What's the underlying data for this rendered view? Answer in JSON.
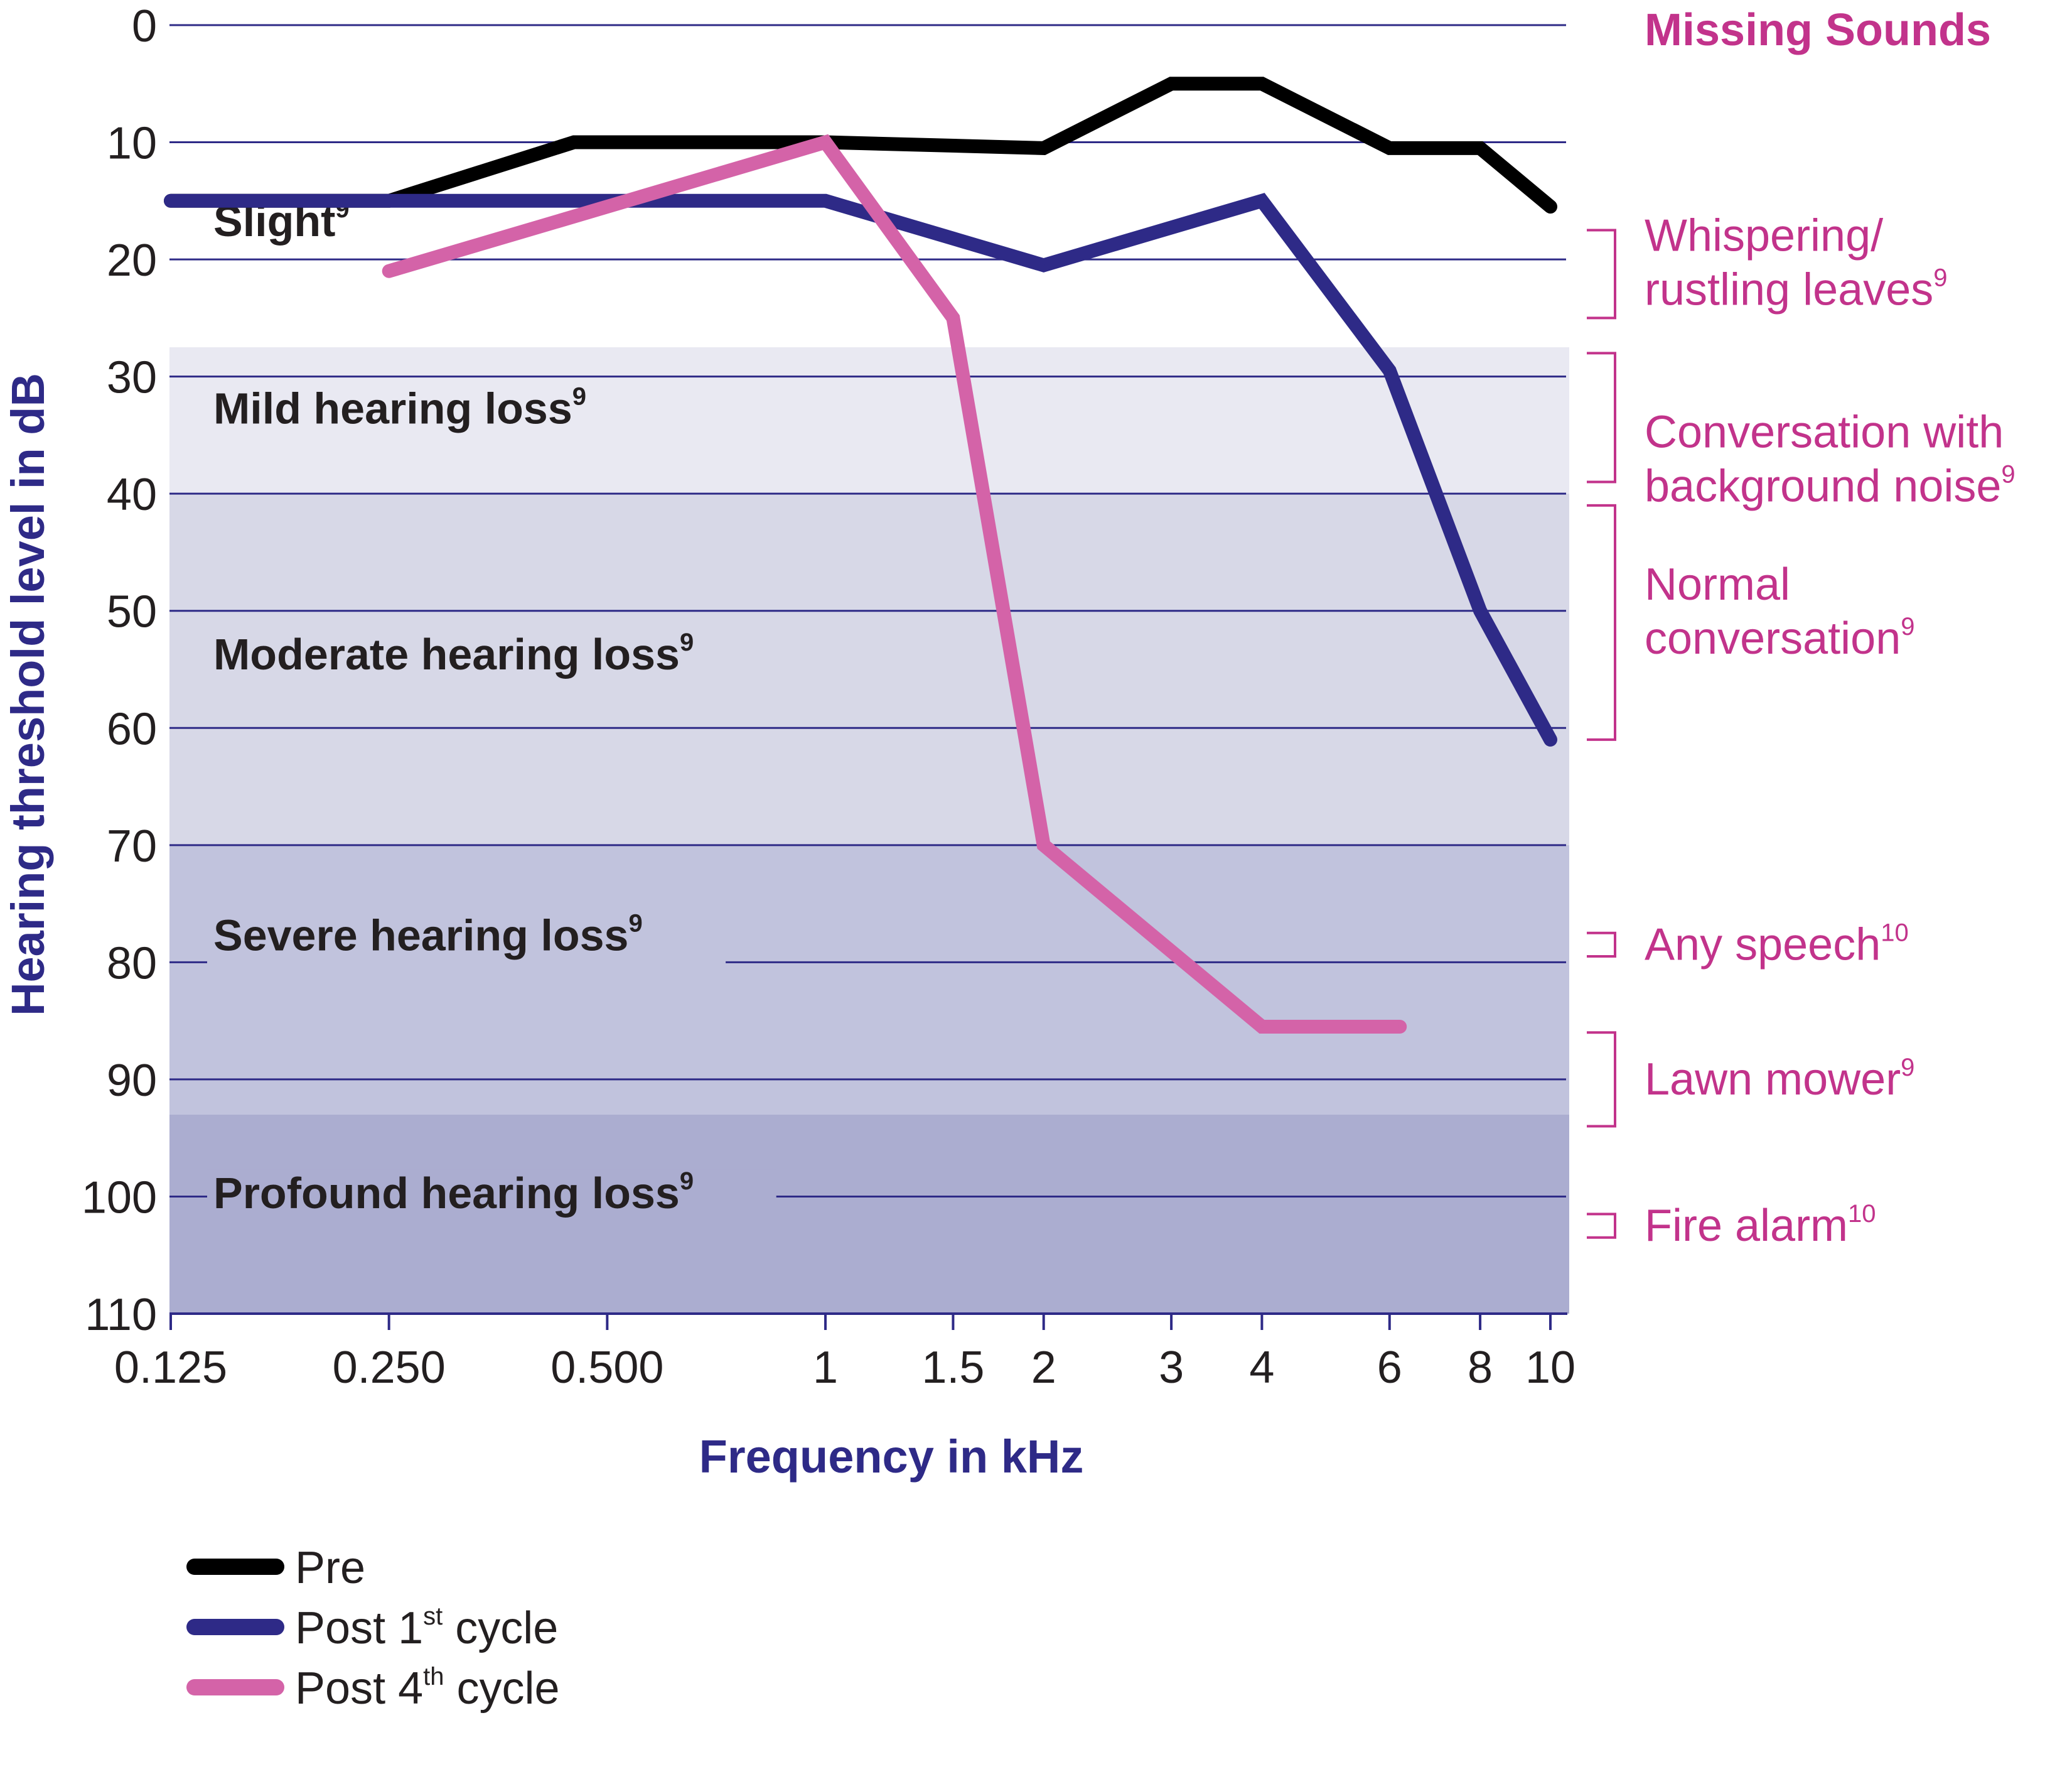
{
  "chart_data": {
    "type": "line",
    "ylabel": "Hearing threshold level in dB",
    "xlabel": "Frequency in kHz",
    "y_inverted": true,
    "ylim": [
      0,
      110
    ],
    "yticks": [
      "0",
      "10",
      "20",
      "30",
      "40",
      "50",
      "60",
      "70",
      "80",
      "90",
      "100",
      "110"
    ],
    "x_scale": "log",
    "xticks": [
      {
        "label": "0.125",
        "value": 0.125
      },
      {
        "label": "0.250",
        "value": 0.25
      },
      {
        "label": "0.500",
        "value": 0.5
      },
      {
        "label": "1",
        "value": 1
      },
      {
        "label": "1.5",
        "value": 1.5
      },
      {
        "label": "2",
        "value": 2
      },
      {
        "label": "3",
        "value": 3
      },
      {
        "label": "4",
        "value": 4
      },
      {
        "label": "6",
        "value": 6
      },
      {
        "label": "8",
        "value": 8
      },
      {
        "label": "10",
        "value": 10
      }
    ],
    "zones": [
      {
        "label": "Slight",
        "ref": "9",
        "from": 0,
        "to": 27.5,
        "color": "#ffffff"
      },
      {
        "label": "Mild hearing loss",
        "ref": "9",
        "from": 27.5,
        "to": 40,
        "color": "#e9e9f2"
      },
      {
        "label": "Moderate hearing loss",
        "ref": "9",
        "from": 40,
        "to": 70,
        "color": "#d7d8e7"
      },
      {
        "label": "Severe hearing loss",
        "ref": "9",
        "from": 70,
        "to": 93,
        "color": "#c1c3dd"
      },
      {
        "label": "Profound hearing loss",
        "ref": "9",
        "from": 93,
        "to": 110,
        "color": "#abadd0"
      }
    ],
    "zone_label_y": [
      18,
      34,
      55,
      79,
      101
    ],
    "series": [
      {
        "name": "Pre",
        "color": "#000000",
        "x": [
          0.125,
          0.25,
          0.45,
          1,
          2,
          3,
          4,
          6,
          8,
          10
        ],
        "y": [
          15,
          15,
          10,
          10,
          10.5,
          5,
          5,
          10.5,
          10.5,
          15.5
        ]
      },
      {
        "name": "Post 1st cycle",
        "color": "#2e2a87",
        "x": [
          0.125,
          1,
          2,
          4,
          6,
          8,
          10
        ],
        "y": [
          15,
          15,
          20.5,
          15,
          29.5,
          50,
          61
        ]
      },
      {
        "name": "Post 4th cycle",
        "color": "#d463a8",
        "x": [
          0.25,
          1,
          1.5,
          2,
          4,
          6.2
        ],
        "y": [
          21,
          10,
          25,
          70,
          85.5,
          85.5
        ]
      }
    ],
    "legend": [
      {
        "name": "Pre",
        "base": "Pre",
        "sup": "",
        "rest": "",
        "color": "#000000"
      },
      {
        "name": "Post 1st cycle",
        "base": "Post 1",
        "sup": "st",
        "rest": " cycle",
        "color": "#2e2a87"
      },
      {
        "name": "Post 4th cycle",
        "base": "Post 4",
        "sup": "th",
        "rest": " cycle",
        "color": "#d463a8"
      }
    ],
    "legend_placement": "bottom-left",
    "missing_sounds": {
      "title": "Missing Sounds",
      "items": [
        {
          "lines": [
            "Whispering/",
            "rustling leaves"
          ],
          "ref": "9",
          "from": 17.5,
          "to": 25
        },
        {
          "lines": [
            "Conversation with",
            "background noise"
          ],
          "ref": "9",
          "from": 28,
          "to": 39
        },
        {
          "lines": [
            "Normal",
            "conversation"
          ],
          "ref": "9",
          "from": 41,
          "to": 61
        },
        {
          "lines": [
            "Any speech"
          ],
          "ref": "10",
          "from": 77.5,
          "to": 79.5
        },
        {
          "lines": [
            "Lawn mower"
          ],
          "ref": "9",
          "from": 86,
          "to": 94
        },
        {
          "lines": [
            "Fire alarm"
          ],
          "ref": "10",
          "from": 101.5,
          "to": 103.5
        }
      ]
    },
    "colors": {
      "gridline": "#2e2a87",
      "axis_title": "#2e2a87",
      "missing_sounds": "#c2338b",
      "text": "#231f20"
    },
    "grid": true
  }
}
